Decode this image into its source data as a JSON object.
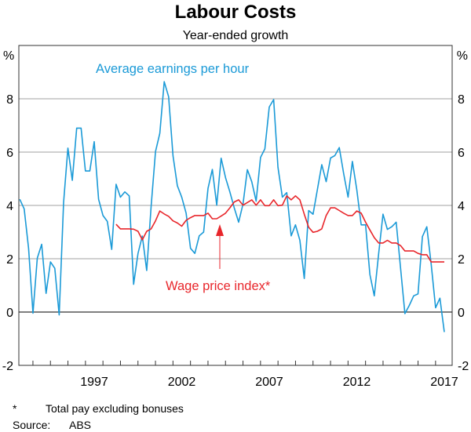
{
  "chart_data": {
    "type": "line",
    "title": "Labour Costs",
    "subtitle": "Year-ended growth",
    "ylabel_left": "%",
    "ylabel_right": "%",
    "ylim": [
      -2,
      10
    ],
    "yticks": [
      -2,
      0,
      2,
      4,
      6,
      8
    ],
    "xticks": [
      1997,
      2002,
      2007,
      2012,
      2017
    ],
    "grid": true,
    "x_start": 1992.75,
    "x_step": 0.25,
    "series": [
      {
        "name": "Average earnings per hour",
        "color": "#1b9ad7",
        "start_index": 0,
        "values": [
          4.23,
          3.87,
          2.39,
          -0.04,
          2.02,
          2.54,
          0.7,
          1.88,
          1.64,
          -0.11,
          4.11,
          6.15,
          4.94,
          6.9,
          6.9,
          5.29,
          5.29,
          6.39,
          4.23,
          3.62,
          3.4,
          2.35,
          4.79,
          4.31,
          4.51,
          4.36,
          1.04,
          2.2,
          2.85,
          1.56,
          3.96,
          6.02,
          6.71,
          8.64,
          8.08,
          5.86,
          4.74,
          4.31,
          3.71,
          2.39,
          2.2,
          2.86,
          3.0,
          4.64,
          5.35,
          4.01,
          5.77,
          5.04,
          4.51,
          3.91,
          3.37,
          4.06,
          5.34,
          4.89,
          4.16,
          5.8,
          6.12,
          7.69,
          7.97,
          5.43,
          4.31,
          4.48,
          2.86,
          3.27,
          2.69,
          1.26,
          3.81,
          3.67,
          4.59,
          5.53,
          4.89,
          5.78,
          5.87,
          6.17,
          5.19,
          4.31,
          5.65,
          4.59,
          3.27,
          3.27,
          1.41,
          0.61,
          2.2,
          3.67,
          3.1,
          3.2,
          3.37,
          1.64,
          -0.06,
          0.25,
          0.61,
          0.68,
          2.83,
          3.2,
          1.79,
          0.16,
          0.52,
          -0.75
        ]
      },
      {
        "name": "Wage price index*",
        "color": "#e8262b",
        "start_index": 22,
        "values": [
          3.29,
          3.12,
          3.12,
          3.12,
          3.11,
          3.03,
          2.71,
          3.03,
          3.12,
          3.42,
          3.79,
          3.68,
          3.59,
          3.42,
          3.34,
          3.22,
          3.44,
          3.54,
          3.62,
          3.62,
          3.62,
          3.71,
          3.5,
          3.5,
          3.6,
          3.71,
          3.91,
          4.13,
          4.21,
          4.01,
          4.11,
          4.21,
          4.01,
          4.21,
          3.99,
          3.99,
          4.21,
          3.99,
          4.01,
          4.36,
          4.21,
          4.36,
          4.21,
          3.67,
          3.18,
          2.99,
          3.03,
          3.12,
          3.62,
          3.91,
          3.91,
          3.81,
          3.71,
          3.62,
          3.62,
          3.79,
          3.71,
          3.37,
          3.08,
          2.79,
          2.59,
          2.59,
          2.69,
          2.59,
          2.59,
          2.49,
          2.29,
          2.29,
          2.29,
          2.2,
          2.15,
          2.15,
          1.88,
          1.88,
          1.88,
          1.88
        ]
      }
    ],
    "annotations": {
      "aeh_label": "Average earnings per hour",
      "wpi_label": "Wage price index*"
    },
    "footnote_marker": "*",
    "footnote_text": "Total pay excluding bonuses",
    "source_label": "Source:",
    "source_text": "ABS"
  }
}
